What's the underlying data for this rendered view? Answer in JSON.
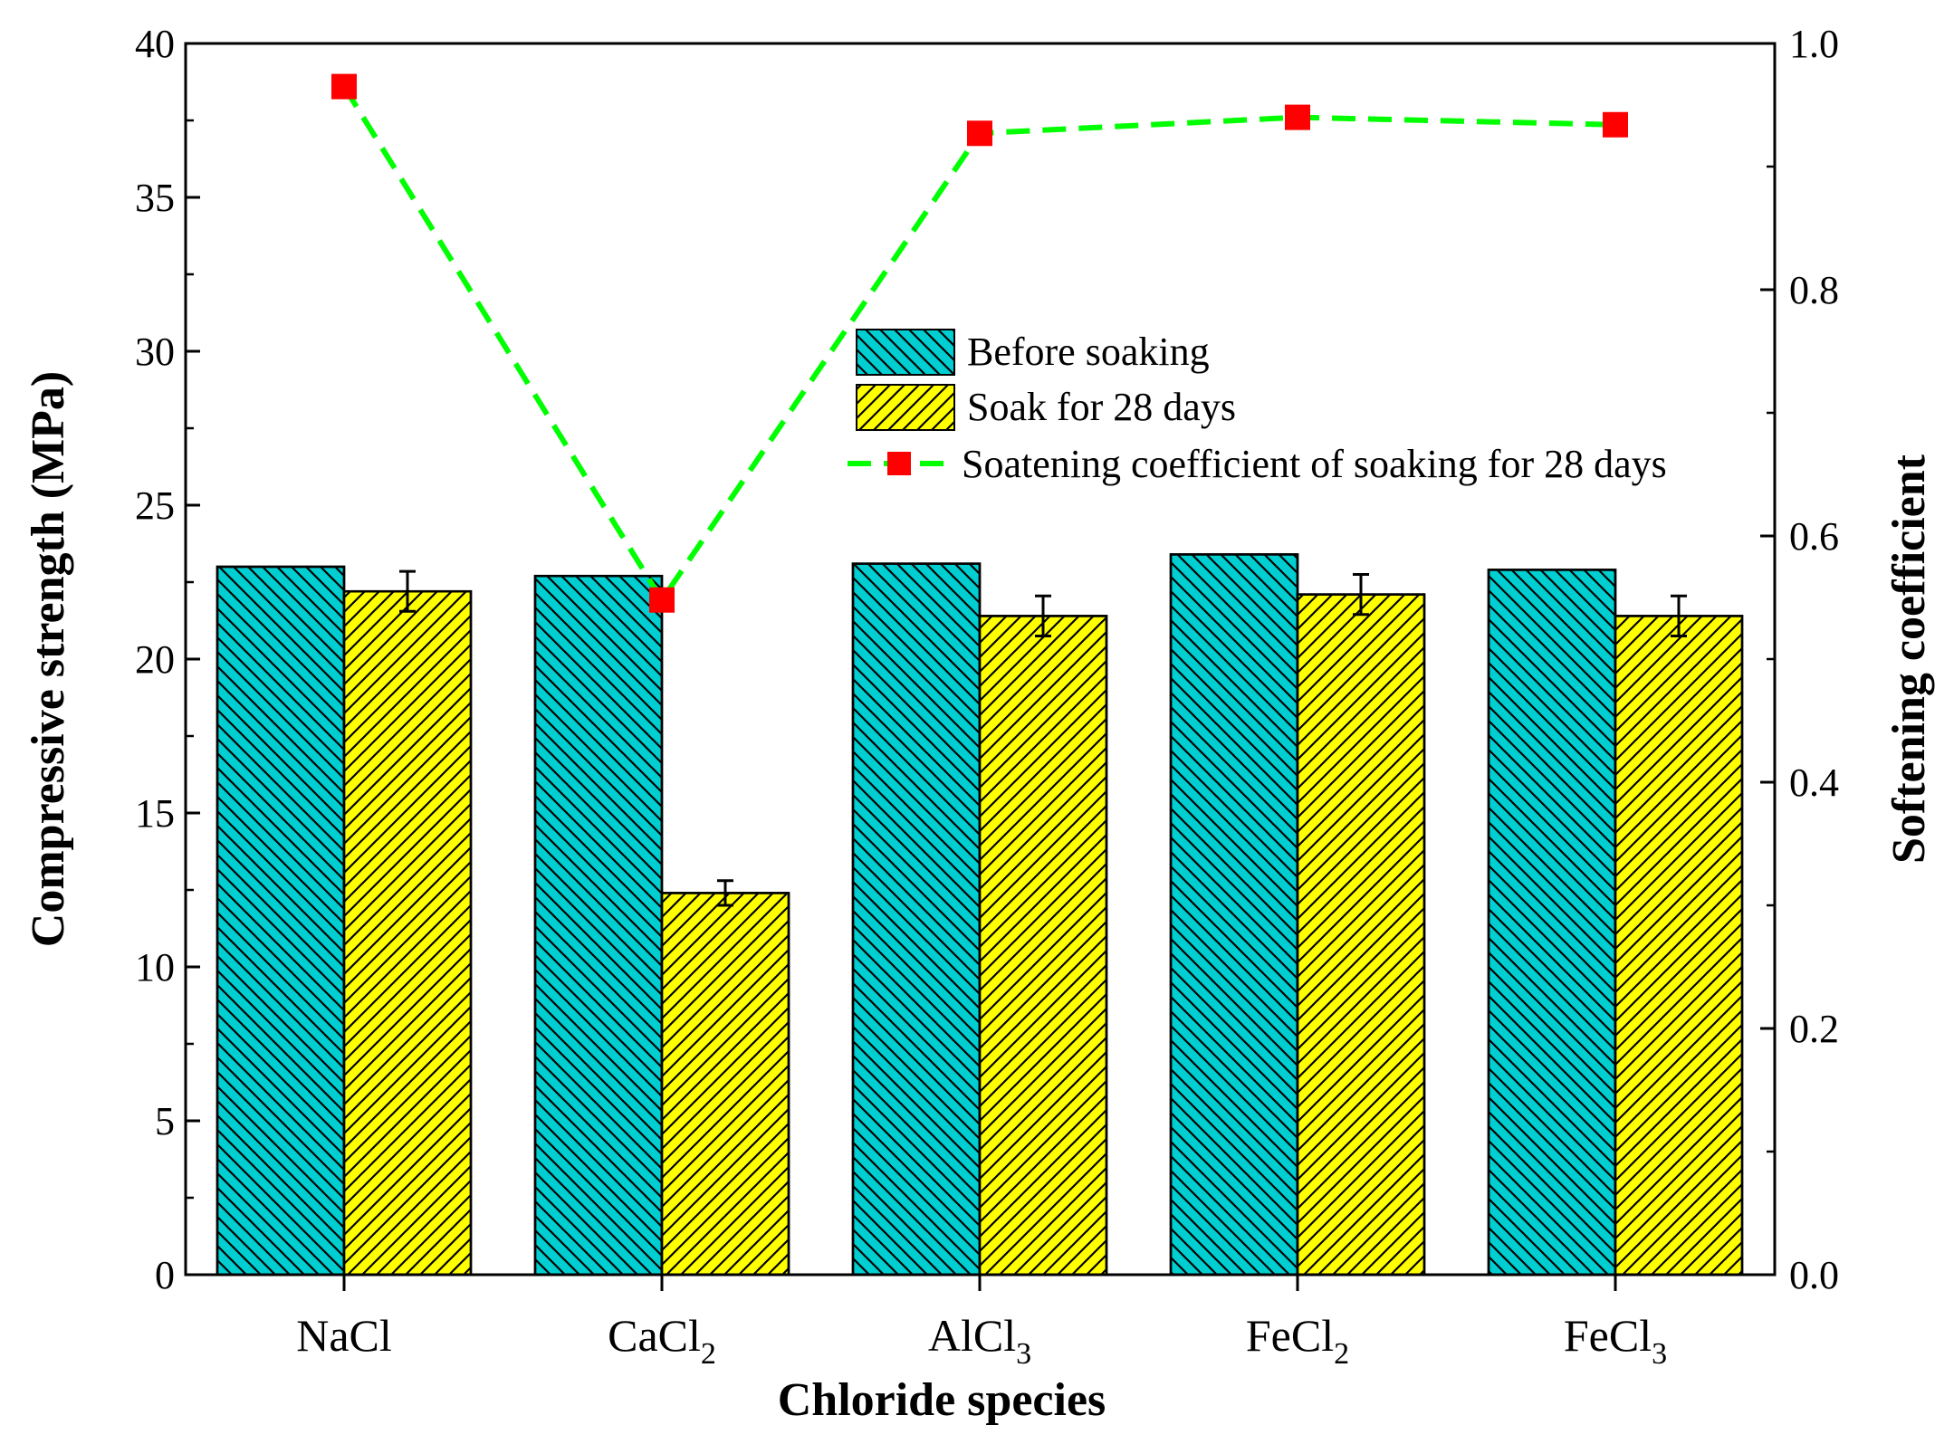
{
  "chart_data": {
    "type": "bar",
    "title": "",
    "xlabel": "Chloride species",
    "ylabel": "Compressive strength (MPa)",
    "y2label": "Softening coefficient",
    "ylim": [
      0,
      40
    ],
    "y2lim": [
      0.0,
      1.0
    ],
    "yticks": [
      "0",
      "5",
      "10",
      "15",
      "20",
      "25",
      "30",
      "35",
      "40"
    ],
    "y2ticks": [
      "0.0",
      "0.2",
      "0.4",
      "0.6",
      "0.8",
      "1.0"
    ],
    "categories": [
      {
        "base": "NaCl",
        "sub": ""
      },
      {
        "base": "CaCl",
        "sub": "2"
      },
      {
        "base": "AlCl",
        "sub": "3"
      },
      {
        "base": "FeCl",
        "sub": "2"
      },
      {
        "base": "FeCl",
        "sub": "3"
      }
    ],
    "series": [
      {
        "name": "Before soaking",
        "color": "#00CED1",
        "values": [
          23.0,
          22.7,
          23.1,
          23.4,
          22.9
        ],
        "errors": [
          0,
          0,
          0,
          0,
          0
        ]
      },
      {
        "name": "Soak for 28 days",
        "color": "#FFFF00",
        "values": [
          22.2,
          12.4,
          21.4,
          22.1,
          21.4
        ],
        "errors": [
          0.65,
          0.4,
          0.65,
          0.65,
          0.65
        ]
      },
      {
        "name": "Soatening coefficient of soaking for 28 days",
        "axis": "right",
        "line_color": "#00FF00",
        "marker_color": "#FF0000",
        "values": [
          0.965,
          0.548,
          0.927,
          0.94,
          0.934
        ]
      }
    ],
    "legend_position": "upper-center"
  }
}
